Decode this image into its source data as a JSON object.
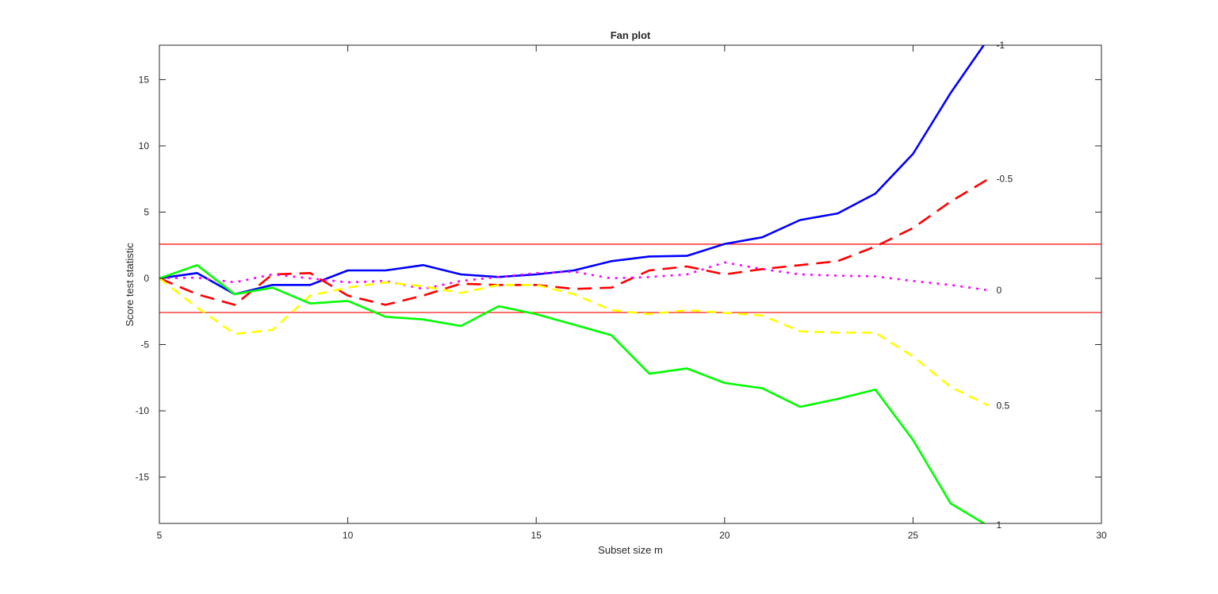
{
  "chart_data": {
    "type": "line",
    "title": "Fan plot",
    "xlabel": "Subset size m",
    "ylabel": "Score test statistic",
    "xlim": [
      5,
      30
    ],
    "ylim": [
      -18.5,
      17.6
    ],
    "xticks": [
      5,
      10,
      15,
      20,
      25,
      30
    ],
    "yticks": [
      -15,
      -10,
      -5,
      0,
      5,
      10,
      15
    ],
    "grid": false,
    "reference_lines": {
      "values": [
        2.58,
        -2.58
      ],
      "color": "#ff0000"
    },
    "x": [
      5,
      6,
      7,
      8,
      9,
      10,
      11,
      12,
      13,
      14,
      15,
      16,
      17,
      18,
      19,
      20,
      21,
      22,
      23,
      24,
      25,
      26,
      27
    ],
    "series": [
      {
        "name": "-1",
        "color": "#0000ff",
        "style": "solid",
        "values": [
          0,
          0.4,
          -1.2,
          -0.5,
          -0.5,
          0.6,
          0.6,
          1.0,
          0.3,
          0.1,
          0.3,
          0.6,
          1.3,
          1.65,
          1.7,
          2.6,
          3.1,
          4.4,
          4.9,
          6.4,
          9.4,
          14.0,
          18.1
        ]
      },
      {
        "name": "-0.5",
        "color": "#ff0000",
        "style": "dashed",
        "values": [
          0,
          -1.2,
          -2.0,
          0.3,
          0.4,
          -1.3,
          -2.0,
          -1.3,
          -0.4,
          -0.5,
          -0.5,
          -0.8,
          -0.7,
          0.6,
          0.9,
          0.3,
          0.7,
          1.0,
          1.3,
          2.4,
          3.8,
          5.8,
          7.5
        ]
      },
      {
        "name": "0",
        "color": "#ff00ff",
        "style": "dotted",
        "values": [
          0,
          0.05,
          -0.3,
          0.3,
          0.0,
          -0.3,
          -0.2,
          -0.8,
          -0.2,
          0.1,
          0.4,
          0.5,
          0.0,
          0.1,
          0.3,
          1.2,
          0.7,
          0.3,
          0.2,
          0.15,
          -0.2,
          -0.5,
          -0.9
        ]
      },
      {
        "name": "0.5",
        "color": "#ffff00",
        "style": "dashdot",
        "values": [
          0,
          -2.2,
          -4.2,
          -3.9,
          -1.3,
          -0.7,
          -0.3,
          -0.6,
          -1.1,
          -0.5,
          -0.5,
          -1.2,
          -2.4,
          -2.7,
          -2.4,
          -2.6,
          -2.8,
          -4.0,
          -4.1,
          -4.1,
          -5.9,
          -8.2,
          -9.6
        ]
      },
      {
        "name": "1",
        "color": "#00ff00",
        "style": "solid",
        "values": [
          0,
          1.0,
          -1.2,
          -0.7,
          -1.9,
          -1.7,
          -2.9,
          -3.1,
          -3.6,
          -2.1,
          -2.7,
          -3.5,
          -4.3,
          -7.2,
          -6.8,
          -7.9,
          -8.3,
          -9.7,
          -9.1,
          -8.4,
          -12.2,
          -17.0,
          -18.7
        ]
      }
    ]
  }
}
